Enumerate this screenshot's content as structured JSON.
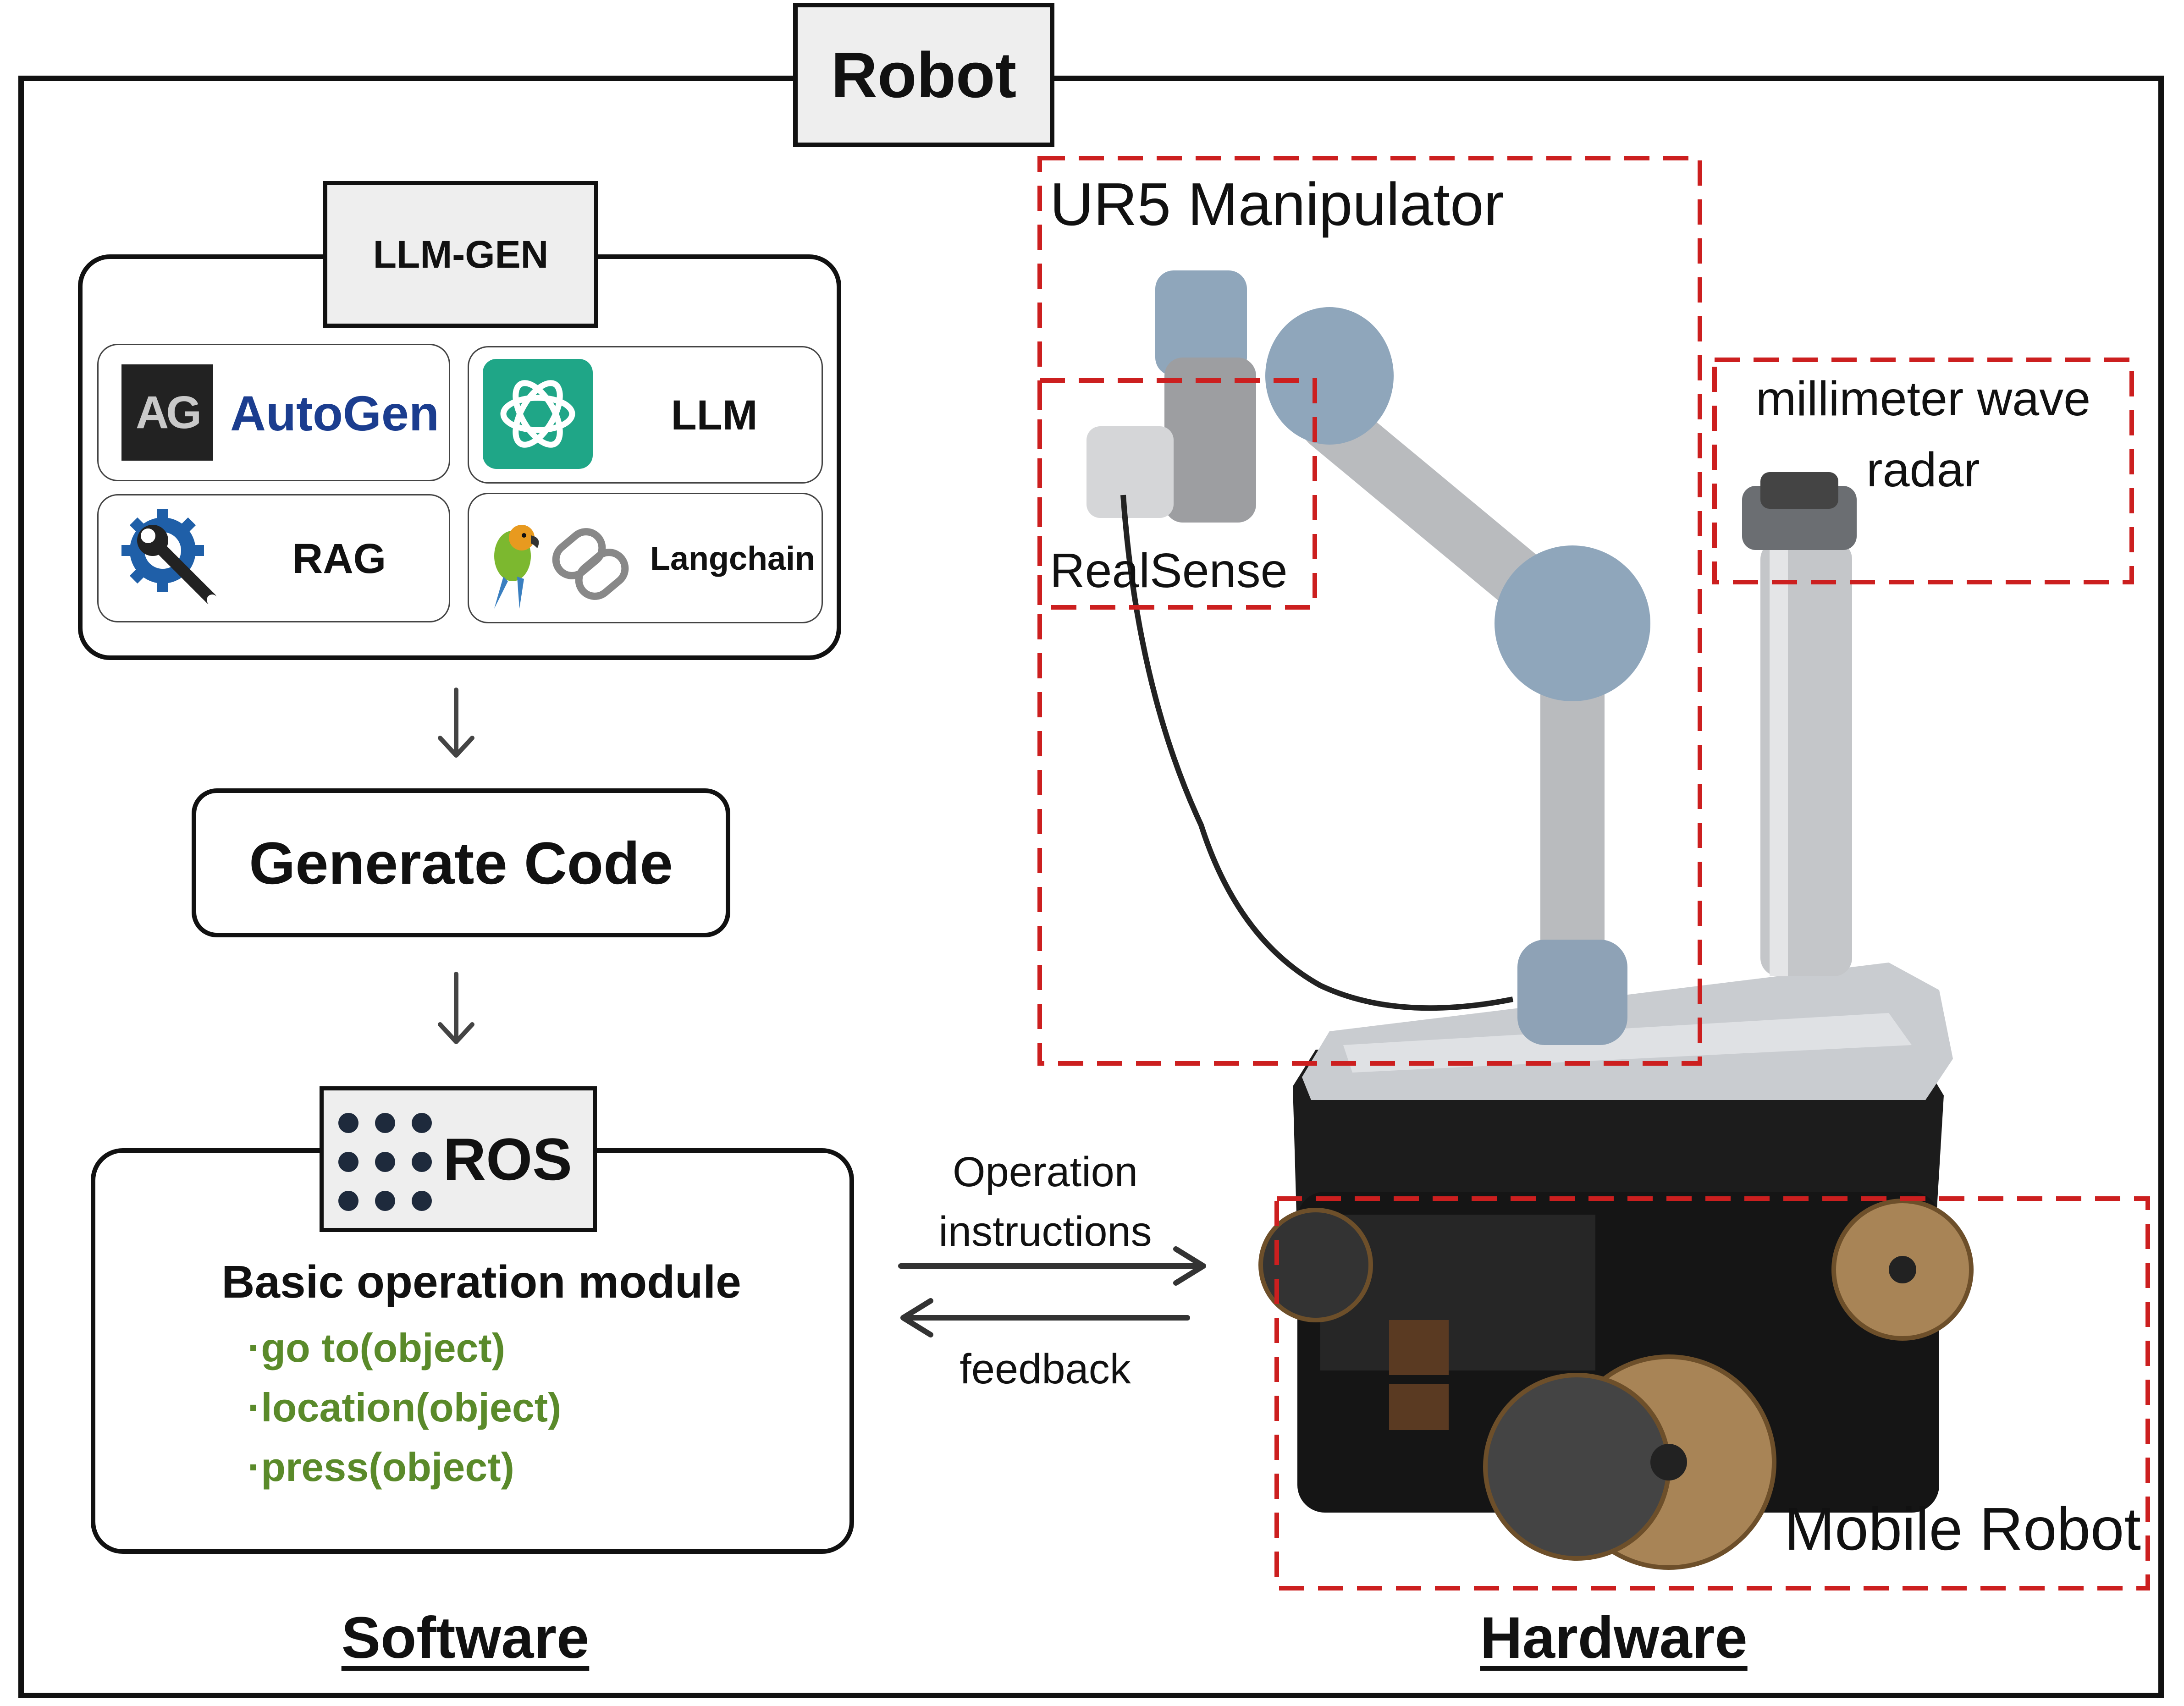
{
  "title": "Robot",
  "software": {
    "section_label": "Software",
    "llm_gen": {
      "tab_label": "LLM-GEN",
      "components": [
        {
          "icon": "autogen-logo-icon",
          "badge": "AG",
          "label": "AutoGen"
        },
        {
          "icon": "openai-logo-icon",
          "label": "LLM"
        },
        {
          "icon": "gear-wrench-icon",
          "label": "RAG"
        },
        {
          "icon": "parrot-chain-icon",
          "label": "Langchain"
        }
      ]
    },
    "generate_code": "Generate Code",
    "ros": {
      "tab_label": "ROS",
      "module_title": "Basic operation module",
      "functions": [
        "·go to(object)",
        "·location(object)",
        "·press(object)"
      ]
    }
  },
  "links": {
    "forward": "Operation\ninstructions",
    "forward_line1": "Operation",
    "forward_line2": "instructions",
    "back": "feedback"
  },
  "hardware": {
    "section_label": "Hardware",
    "manipulator": "UR5 Manipulator",
    "camera": "RealSense",
    "radar_line1": "millimeter wave",
    "radar_line2": "radar",
    "base": "Mobile Robot"
  },
  "colors": {
    "accent_green": "#5a8a2a",
    "dashed_red": "#cc1f1f",
    "openai_teal": "#1fa687",
    "autogen_blue": "#1b3d8f"
  }
}
